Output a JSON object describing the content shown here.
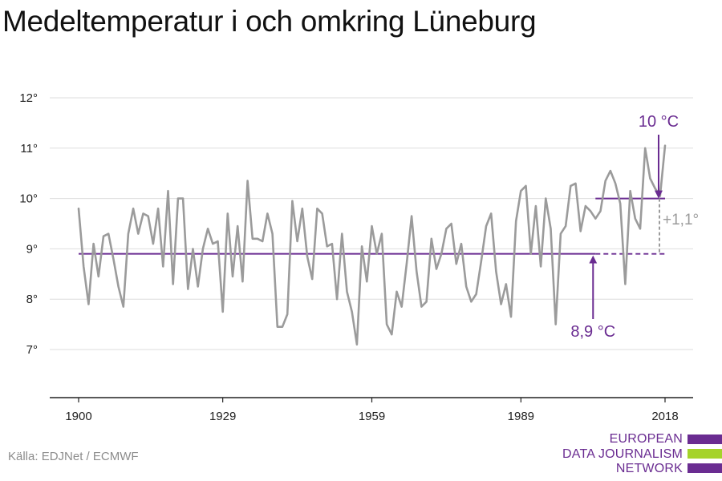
{
  "title": "Medeltemperatur i och omkring Lüneburg",
  "source": "Källa: EDJNet / ECMWF",
  "logo": {
    "lines": [
      "EUROPEAN",
      "DATA JOURNALISM",
      "NETWORK"
    ],
    "colors": {
      "purple": "#6a2c91",
      "green": "#a5d32a"
    }
  },
  "colors": {
    "series": "#9b9b9b",
    "baseline": "#6a2c91",
    "recent": "#6a2c91",
    "difference": "#9b9b9b",
    "grid": "#dddddd",
    "axis": "#222222"
  },
  "chart_data": {
    "type": "line",
    "x_ticks": [
      1900,
      1929,
      1959,
      1989,
      2018
    ],
    "x_tick_labels": [
      "1900",
      "1929",
      "1959",
      "1989",
      "2018"
    ],
    "y_ticks": [
      7,
      8,
      9,
      10,
      11,
      12
    ],
    "y_tick_labels": [
      "7°",
      "8°",
      "9°",
      "10°",
      "11°",
      "12°"
    ],
    "xlim": [
      1900,
      2018
    ],
    "ylim": [
      6,
      12.3
    ],
    "grid": "horizontal",
    "series": [
      {
        "x_start": 1900,
        "values": [
          9.8,
          8.65,
          7.9,
          9.1,
          8.45,
          9.25,
          9.3,
          8.8,
          8.25,
          7.85,
          9.3,
          9.8,
          9.3,
          9.7,
          9.65,
          9.1,
          9.8,
          8.65,
          10.15,
          8.3,
          10.0,
          10.0,
          8.2,
          9.0,
          8.25,
          9.0,
          9.4,
          9.1,
          9.15,
          7.75,
          9.7,
          8.45,
          9.45,
          8.35,
          10.35,
          9.2,
          9.2,
          9.15,
          9.7,
          9.3,
          7.45,
          7.45,
          7.7,
          9.95,
          9.15,
          9.8,
          8.85,
          8.4,
          9.8,
          9.7,
          9.05,
          9.1,
          8.0,
          9.3,
          8.15,
          7.75,
          7.1,
          9.05,
          8.35,
          9.45,
          8.9,
          9.3,
          7.5,
          7.3,
          8.15,
          7.85,
          8.7,
          9.65,
          8.55,
          7.85,
          7.95,
          9.2,
          8.6,
          8.9,
          9.4,
          9.5,
          8.7,
          9.1,
          8.25,
          7.95,
          8.1,
          8.75,
          9.45,
          9.7,
          8.55,
          7.9,
          8.3,
          7.65,
          9.55,
          10.15,
          10.25,
          8.9,
          9.85,
          8.65,
          10.0,
          9.4,
          7.5,
          9.3,
          9.45,
          10.25,
          10.3,
          9.35,
          9.85,
          9.75,
          9.6,
          9.75,
          10.35,
          10.55,
          10.3,
          9.9,
          8.3,
          10.15,
          9.6,
          9.4,
          11.0,
          10.4,
          10.2,
          10.05,
          11.05
        ]
      }
    ],
    "baseline": {
      "value": 8.9,
      "from": 1900,
      "to": 2018,
      "dashed_from": 2004,
      "label": "8,9 °C",
      "label_year": 2004
    },
    "recent": {
      "value": 10.0,
      "from": 2004,
      "to": 2018,
      "label": "10 °C"
    },
    "difference": {
      "at": 2018,
      "from": 8.9,
      "to": 10.0,
      "label": "+1,1°"
    }
  }
}
